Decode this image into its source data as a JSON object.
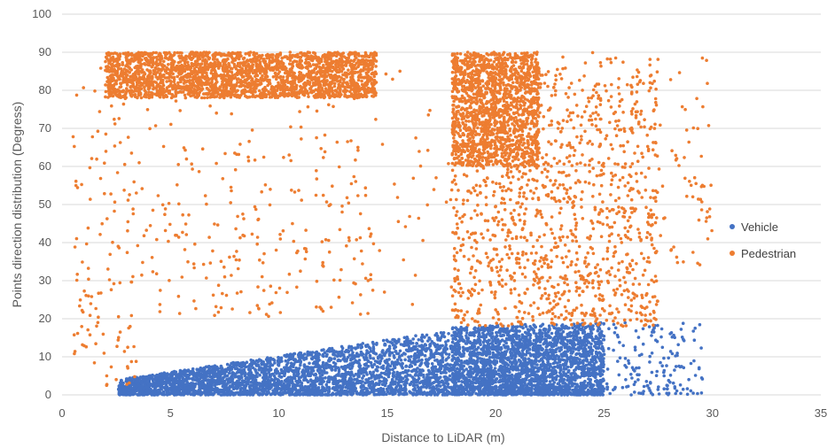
{
  "chart_data": {
    "type": "scatter",
    "title": "",
    "xlabel": "Distance to LiDAR (m)",
    "ylabel": "Points direction distribution (Degress)",
    "xlim": [
      0,
      35
    ],
    "ylim": [
      0,
      100
    ],
    "x_ticks": [
      "0",
      "5",
      "10",
      "15",
      "20",
      "25",
      "30",
      "35"
    ],
    "y_ticks": [
      "0",
      "10",
      "20",
      "30",
      "40",
      "50",
      "60",
      "70",
      "80",
      "90",
      "100"
    ],
    "grid": "horizontal",
    "legend_position": "right",
    "series": [
      {
        "name": "Vehicle",
        "color": "#4472C4",
        "regions": [
          {
            "x": [
              2.6,
              18.0
            ],
            "y_min": 0,
            "y_max_at_start": 4,
            "y_max_at_end": 17,
            "count": 3200
          },
          {
            "x": [
              18.0,
              25.0
            ],
            "y_min": 0,
            "y_max_at_start": 18,
            "y_max_at_end": 19,
            "count": 2600
          },
          {
            "x": [
              25.0,
              29.6
            ],
            "y_min": 0,
            "y_max_at_start": 19,
            "y_max_at_end": 19,
            "count": 160
          }
        ]
      },
      {
        "name": "Pedestrian",
        "color": "#ED7D31",
        "regions": [
          {
            "x": [
              2.0,
              14.5
            ],
            "y_min": 78,
            "y_max": 90,
            "count": 2600
          },
          {
            "x": [
              0.5,
              3.5
            ],
            "y_min": 2,
            "y_max": 90,
            "count": 120
          },
          {
            "x": [
              3.0,
              14.5
            ],
            "y_min": 20,
            "y_max": 80,
            "count": 260
          },
          {
            "x": [
              14.0,
              18.0
            ],
            "y_min": 20,
            "y_max": 90,
            "count": 35
          },
          {
            "x": [
              18.0,
              22.0
            ],
            "y_min": 60,
            "y_max": 90,
            "count": 1500
          },
          {
            "x": [
              18.0,
              27.5
            ],
            "y_min": 18,
            "y_max": 90,
            "count": 1300
          },
          {
            "x": [
              27.0,
              30.0
            ],
            "y_min": 34,
            "y_max": 90,
            "count": 70
          }
        ]
      }
    ]
  }
}
